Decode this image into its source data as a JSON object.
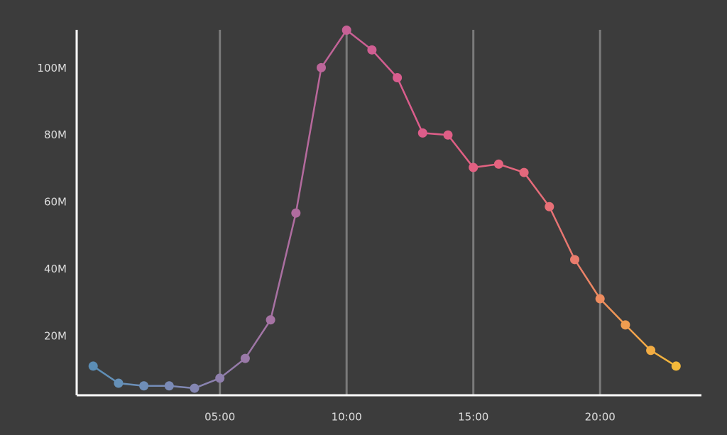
{
  "chart_data": {
    "type": "line",
    "x": [
      0,
      1,
      2,
      3,
      4,
      5,
      6,
      7,
      8,
      9,
      10,
      11,
      12,
      13,
      14,
      15,
      16,
      17,
      18,
      19,
      20,
      21,
      22,
      23
    ],
    "series": [
      {
        "values": [
          11.1,
          6.0,
          5.2,
          5.2,
          4.5,
          7.5,
          13.4,
          24.9,
          56.8,
          100.2,
          111.4,
          105.5,
          97.2,
          80.7,
          80.1,
          70.4,
          71.4,
          68.9,
          58.7,
          42.9,
          31.2,
          23.4,
          15.8,
          11.1
        ],
        "colors": [
          "#5b8db5",
          "#6590b8",
          "#6f8eb8",
          "#7a8ab6",
          "#8486b2",
          "#8f7fad",
          "#9a79a8",
          "#a673a4",
          "#b06c9f",
          "#bc669a",
          "#c86196",
          "#d05e92",
          "#d85d8e",
          "#dd5d8a",
          "#e05e86",
          "#e26082",
          "#e4637f",
          "#e5687c",
          "#e77077",
          "#ea7c6d",
          "#ee8c5f",
          "#f09d50",
          "#f2ac43",
          "#f4b93a"
        ]
      }
    ],
    "xlim": [
      -0.65,
      24
    ],
    "ylim": [
      2.4,
      111.5
    ],
    "xticks": [
      {
        "value": 5,
        "label": "05:00"
      },
      {
        "value": 10,
        "label": "10:00"
      },
      {
        "value": 15,
        "label": "15:00"
      },
      {
        "value": 20,
        "label": "20:00"
      }
    ],
    "yticks": [
      {
        "value": 20,
        "label": "20M"
      },
      {
        "value": 40,
        "label": "40M"
      },
      {
        "value": 60,
        "label": "60M"
      },
      {
        "value": 80,
        "label": "80M"
      },
      {
        "value": 100,
        "label": "100M"
      }
    ],
    "grid": true
  }
}
